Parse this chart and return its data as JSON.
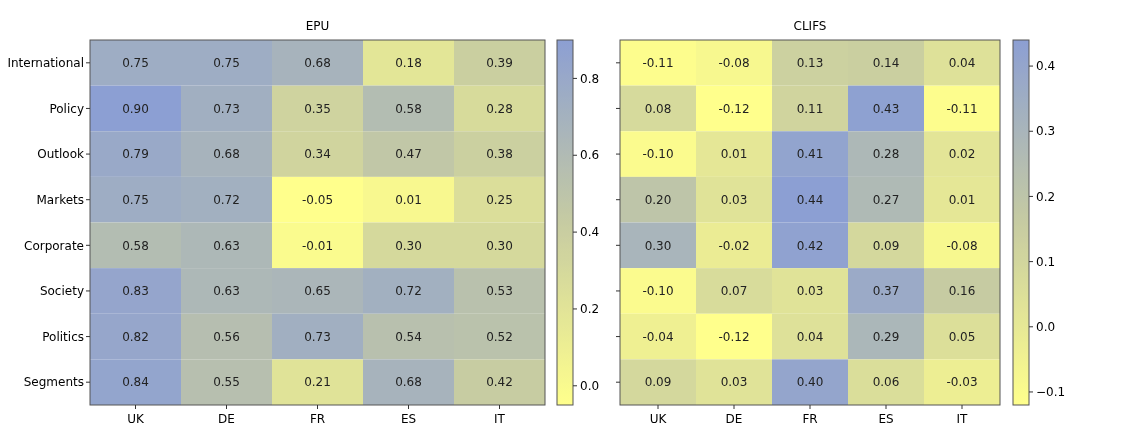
{
  "chart_data": [
    {
      "type": "heatmap",
      "title": "EPU",
      "categories": [
        "UK",
        "DE",
        "FR",
        "ES",
        "IT"
      ],
      "y_categories": [
        "International",
        "Policy",
        "Outlook",
        "Markets",
        "Corporate",
        "Society",
        "Politics",
        "Segments"
      ],
      "cells": [
        [
          0.75,
          0.75,
          0.68,
          0.18,
          0.39
        ],
        [
          0.9,
          0.73,
          0.35,
          0.58,
          0.28
        ],
        [
          0.79,
          0.68,
          0.34,
          0.47,
          0.38
        ],
        [
          0.75,
          0.72,
          -0.05,
          0.01,
          0.25
        ],
        [
          0.58,
          0.63,
          -0.01,
          0.3,
          0.3
        ],
        [
          0.83,
          0.63,
          0.65,
          0.72,
          0.53
        ],
        [
          0.82,
          0.56,
          0.73,
          0.54,
          0.52
        ],
        [
          0.84,
          0.55,
          0.21,
          0.68,
          0.42
        ]
      ],
      "cell_labels": [
        [
          "0.75",
          "0.75",
          "0.68",
          "0.18",
          "0.39"
        ],
        [
          "0.90",
          "0.73",
          "0.35",
          "0.58",
          "0.28"
        ],
        [
          "0.79",
          "0.68",
          "0.34",
          "0.47",
          "0.38"
        ],
        [
          "0.75",
          "0.72",
          "-0.05",
          "0.01",
          "0.25"
        ],
        [
          "0.58",
          "0.63",
          "-0.01",
          "0.30",
          "0.30"
        ],
        [
          "0.83",
          "0.63",
          "0.65",
          "0.72",
          "0.53"
        ],
        [
          "0.82",
          "0.56",
          "0.73",
          "0.54",
          "0.52"
        ],
        [
          "0.84",
          "0.55",
          "0.21",
          "0.68",
          "0.42"
        ]
      ],
      "clim": [
        -0.05,
        0.9
      ],
      "cticks": [
        {
          "value": 0,
          "label": "0.0"
        },
        {
          "value": 0.2,
          "label": "0.2"
        },
        {
          "value": 0.4,
          "label": "0.4"
        },
        {
          "value": 0.6,
          "label": "0.6"
        },
        {
          "value": 0.8,
          "label": "0.8"
        }
      ]
    },
    {
      "type": "heatmap",
      "title": "CLIFS",
      "categories": [
        "UK",
        "DE",
        "FR",
        "ES",
        "IT"
      ],
      "y_categories": [
        null,
        null,
        null,
        null,
        null,
        null,
        null,
        null
      ],
      "cells": [
        [
          -0.11,
          -0.08,
          0.13,
          0.14,
          0.04
        ],
        [
          0.08,
          -0.12,
          0.11,
          0.43,
          -0.11
        ],
        [
          -0.1,
          0.01,
          0.41,
          0.28,
          0.02
        ],
        [
          0.2,
          0.03,
          0.44,
          0.27,
          0.01
        ],
        [
          0.3,
          -0.02,
          0.42,
          0.09,
          -0.08
        ],
        [
          -0.1,
          0.07,
          0.03,
          0.37,
          0.16
        ],
        [
          -0.04,
          -0.12,
          0.04,
          0.29,
          0.05
        ],
        [
          0.09,
          0.03,
          0.4,
          0.06,
          -0.03
        ]
      ],
      "cell_labels": [
        [
          "-0.11",
          "-0.08",
          "0.13",
          "0.14",
          "0.04"
        ],
        [
          "0.08",
          "-0.12",
          "0.11",
          "0.43",
          "-0.11"
        ],
        [
          "-0.10",
          "0.01",
          "0.41",
          "0.28",
          "0.02"
        ],
        [
          "0.20",
          "0.03",
          "0.44",
          "0.27",
          "0.01"
        ],
        [
          "0.30",
          "-0.02",
          "0.42",
          "0.09",
          "-0.08"
        ],
        [
          "-0.10",
          "0.07",
          "0.03",
          "0.37",
          "0.16"
        ],
        [
          "-0.04",
          "-0.12",
          "0.04",
          "0.29",
          "0.05"
        ],
        [
          "0.09",
          "0.03",
          "0.40",
          "0.06",
          "-0.03"
        ]
      ],
      "clim": [
        -0.12,
        0.44
      ],
      "cticks": [
        {
          "value": -0.1,
          "label": "−0.1"
        },
        {
          "value": 0,
          "label": "0.0"
        },
        {
          "value": 0.1,
          "label": "0.1"
        },
        {
          "value": 0.2,
          "label": "0.2"
        },
        {
          "value": 0.3,
          "label": "0.3"
        },
        {
          "value": 0.4,
          "label": "0.4"
        }
      ]
    }
  ]
}
